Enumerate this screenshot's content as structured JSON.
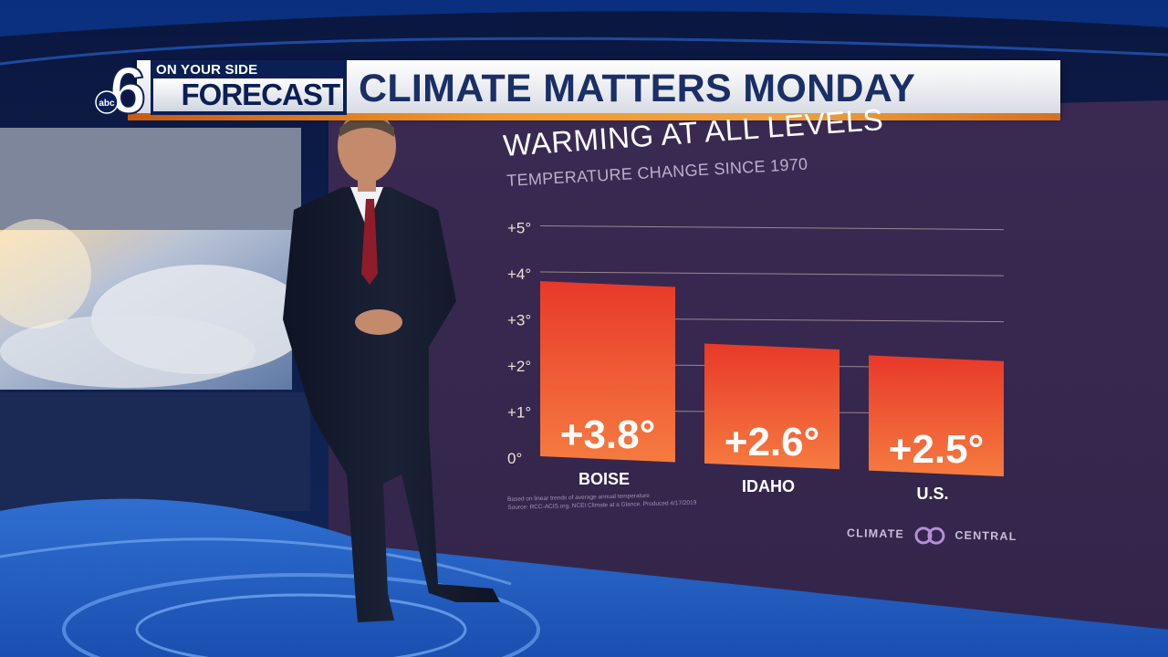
{
  "station": {
    "tagline": "ON YOUR SIDE",
    "name": "FORECAST",
    "channel": "6",
    "network": "abc"
  },
  "banner": {
    "title": "CLIMATE MATTERS MONDAY"
  },
  "chart_data": {
    "type": "bar",
    "title": "WARMING AT ALL LEVELS",
    "subtitle": "TEMPERATURE CHANGE SINCE 1970",
    "categories": [
      "BOISE",
      "IDAHO",
      "U.S."
    ],
    "values": [
      3.8,
      2.6,
      2.5
    ],
    "value_labels": [
      "+3.8°",
      "+2.6°",
      "+2.5°"
    ],
    "yticks": [
      "0°",
      "+1°",
      "+2°",
      "+3°",
      "+4°",
      "+5°"
    ],
    "ylim": [
      0,
      5
    ],
    "grid": true,
    "bar_color_top": "#e8392a",
    "bar_color_bottom": "#f57b40"
  },
  "footnote": {
    "line1": "Based on linear trends of average annual temperature",
    "line2": "Source: RCC-ACIS.org, NCEI Climate at a Glance. Produced 4/17/2019"
  },
  "brand": {
    "left": "CLIMATE",
    "right": "CENTRAL"
  },
  "colors": {
    "panel": "#3c2a52",
    "banner_text": "#1a2f66",
    "station_blue": "#0b1f55",
    "stripe_orange": "#f39a2c"
  }
}
